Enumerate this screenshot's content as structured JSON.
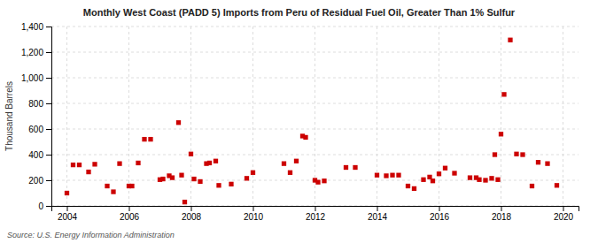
{
  "chart_data": {
    "type": "scatter",
    "title": "Monthly West Coast (PADD 5) Imports from Peru of Residual Fuel Oil, Greater Than 1% Sulfur",
    "ylabel": "Thousand Barrels",
    "annotations": [
      "Source: U.S. Energy Information Administration"
    ],
    "color": "#cc0000",
    "marker": "square",
    "grid": true,
    "xlim": [
      2003.5,
      2020.5
    ],
    "ylim": [
      0,
      1400
    ],
    "xticks": [
      2004,
      2006,
      2008,
      2010,
      2012,
      2014,
      2016,
      2018,
      2020
    ],
    "yticks": [
      0,
      200,
      400,
      600,
      800,
      {
        "value": 1000,
        "label": "1,000"
      },
      {
        "value": 1200,
        "label": "1,200"
      },
      {
        "value": 1400,
        "label": "1,400"
      }
    ],
    "x": [
      2004.0,
      2004.2,
      2004.4,
      2004.7,
      2004.9,
      2005.3,
      2005.5,
      2005.7,
      2006.0,
      2006.1,
      2006.3,
      2006.5,
      2006.7,
      2007.0,
      2007.1,
      2007.3,
      2007.4,
      2007.6,
      2007.7,
      2007.8,
      2008.0,
      2008.1,
      2008.3,
      2008.5,
      2008.6,
      2008.8,
      2008.9,
      2009.3,
      2009.8,
      2010.0,
      2011.0,
      2011.2,
      2011.4,
      2011.6,
      2011.7,
      2012.0,
      2012.1,
      2012.3,
      2013.0,
      2013.3,
      2014.0,
      2014.3,
      2014.5,
      2014.7,
      2015.0,
      2015.2,
      2015.5,
      2015.7,
      2015.8,
      2016.0,
      2016.2,
      2016.5,
      2017.0,
      2017.2,
      2017.3,
      2017.5,
      2017.7,
      2017.8,
      2017.9,
      2018.0,
      2018.1,
      2018.3,
      2018.5,
      2018.7,
      2019.0,
      2019.2,
      2019.5,
      2019.8
    ],
    "values": [
      100,
      320,
      320,
      265,
      325,
      155,
      110,
      330,
      155,
      155,
      335,
      520,
      520,
      205,
      210,
      235,
      220,
      650,
      240,
      30,
      405,
      210,
      190,
      330,
      335,
      350,
      160,
      170,
      215,
      260,
      330,
      260,
      350,
      545,
      535,
      200,
      185,
      195,
      300,
      300,
      240,
      235,
      240,
      240,
      155,
      135,
      205,
      225,
      195,
      250,
      295,
      255,
      220,
      220,
      205,
      200,
      215,
      400,
      205,
      560,
      870,
      1295,
      405,
      400,
      155,
      340,
      330,
      160
    ]
  }
}
